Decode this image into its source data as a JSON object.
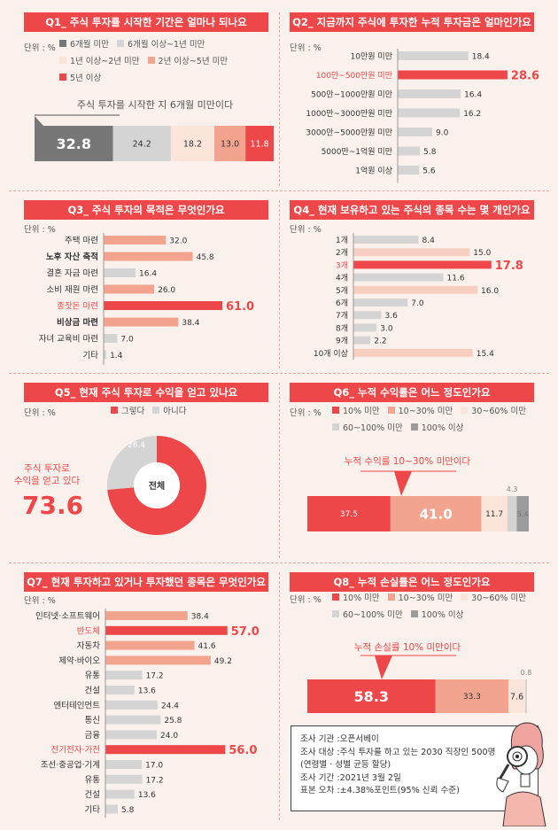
{
  "colors": {
    "red": "#ee4749",
    "salmon": "#f2a48f",
    "peach": "#f7cfc0",
    "pale": "#fbe4da",
    "lightgray": "#d4d4d4",
    "midgray": "#9b9b9b",
    "darkgray": "#777777",
    "accent_text": "#ee4749"
  },
  "units": {
    "q1": "단위 : %",
    "q2": "단위 : %",
    "q3": "단위 : %",
    "q4": "단위 : %",
    "q5": "단위 : %",
    "q6": "단위 : %",
    "q7": "단위 : %",
    "q8": "단위 : %"
  },
  "q1": {
    "title": "Q1_ 주식 투자를 시작한 기간은 얼마나 되나요",
    "callout": "주식 투자를 시작한 지 6개월 미만이다",
    "chart_data": {
      "type": "bar",
      "stacked": true,
      "categories": [
        "6개월 미만",
        "6개월 이상~1년 미만",
        "1년 이상~2년 미만",
        "2년 이상~5년 미만",
        "5년 이상"
      ],
      "values": [
        32.8,
        24.2,
        18.2,
        13.0,
        11.8
      ],
      "labels": [
        "32.8",
        "24.2",
        "18.2",
        "13.0",
        "11.8"
      ],
      "colors": [
        "#777777",
        "#d4d4d4",
        "#fbe4da",
        "#f2a48f",
        "#ee4749"
      ],
      "label_colors": [
        "#ffffff",
        "#333333",
        "#333333",
        "#333333",
        "#ffffff"
      ]
    }
  },
  "q2": {
    "title": "Q2_ 지금까지 주식에 투자한 누적 투자금은 얼마인가요",
    "chart_data": {
      "type": "bar",
      "orientation": "horizontal",
      "categories": [
        "10만원 미만",
        "100만~500만원 미만",
        "500만~1000만원 미만",
        "1000만~3000만원 미만",
        "3000만~5000만원 미만",
        "5000만~1억원 미만",
        "1억원 이상"
      ],
      "values": [
        18.4,
        28.6,
        16.4,
        16.2,
        9.0,
        5.8,
        5.6
      ],
      "labels": [
        "18.4",
        "28.6",
        "16.4",
        "16.2",
        "9.0",
        "5.8",
        "5.6"
      ],
      "highlight": [
        1
      ],
      "xlim": [
        0,
        30
      ]
    }
  },
  "q3": {
    "title": "Q3_ 주식 투자의 목적은 무엇인가요",
    "chart_data": {
      "type": "bar",
      "orientation": "horizontal",
      "categories": [
        "주택 마련",
        "노후 자산 축적",
        "결혼 자금 마련",
        "소비 재원 마련",
        "종잣돈 마련",
        "비상금 마련",
        "자녀 교육비 마련",
        "기타"
      ],
      "values": [
        32.0,
        45.8,
        16.4,
        26.0,
        61.0,
        38.4,
        7.0,
        1.4
      ],
      "labels": [
        "32.0",
        "45.8",
        "16.4",
        "26.0",
        "61.0",
        "38.4",
        "7.0",
        "1.4"
      ],
      "highlight": [
        4
      ],
      "bold": [
        1,
        5
      ],
      "xlim": [
        0,
        66
      ]
    }
  },
  "q4": {
    "title": "Q4_ 현재 보유하고 있는 주식의 종목 수는 몇 개인가요",
    "chart_data": {
      "type": "bar",
      "orientation": "horizontal",
      "categories": [
        "1개",
        "2개",
        "3개",
        "4개",
        "5개",
        "6개",
        "7개",
        "8개",
        "9개",
        "10개 이상"
      ],
      "values": [
        8.4,
        15.0,
        17.8,
        11.6,
        16.0,
        7.0,
        3.6,
        3.0,
        2.2,
        15.4
      ],
      "labels": [
        "8.4",
        "15.0",
        "17.8",
        "11.6",
        "16.0",
        "7.0",
        "3.6",
        "3.0",
        "2.2",
        "15.4"
      ],
      "highlight": [
        2
      ],
      "xlim": [
        0,
        20
      ]
    }
  },
  "q5": {
    "title": "Q5_ 현재 주식 투자로 수익을 얻고 있나요",
    "center_label": "전체",
    "callout_line1": "주식 투자로",
    "callout_line2": "수익을 얻고 있다",
    "big_value": "73.6",
    "chart_data": {
      "type": "pie",
      "categories": [
        "그렇다",
        "아니다"
      ],
      "values": [
        73.6,
        26.4
      ],
      "labels": [
        "73.6",
        "26.4"
      ],
      "colors": [
        "#ee4749",
        "#d4d4d4"
      ]
    }
  },
  "q6": {
    "title": "Q6_ 누적 수익률은 어느 정도인가요",
    "callout": "누적 수익률 10~30% 미만이다",
    "chart_data": {
      "type": "bar",
      "stacked": true,
      "categories": [
        "10% 미만",
        "10~30% 미만",
        "30~60% 미만",
        "60~100% 미만",
        "100% 이상"
      ],
      "values": [
        37.5,
        41.0,
        11.7,
        4.3,
        5.4
      ],
      "labels": [
        "37.5",
        "41.0",
        "11.7",
        "4.3",
        "5.4"
      ],
      "colors": [
        "#ee4749",
        "#f2a48f",
        "#fbe4da",
        "#d4d4d4",
        "#9b9b9b"
      ],
      "label_colors": [
        "#ffffff",
        "#ffffff",
        "#333333",
        "#ffffff",
        "#777777"
      ]
    }
  },
  "q7": {
    "title": "Q7_ 현재 투자하고 있거나 투자했던 종목은 무엇인가요",
    "chart_data": {
      "type": "bar",
      "orientation": "horizontal",
      "categories": [
        "인터넷·소프트웨어",
        "반도체",
        "자동차",
        "제약·바이오",
        "유통",
        "건설",
        "엔터테인먼트",
        "통신",
        "금융",
        "전기전자·가전",
        "조선·중공업·기계",
        "유통",
        "건설",
        "기타"
      ],
      "values": [
        38.4,
        57.0,
        41.6,
        49.2,
        17.2,
        13.6,
        24.4,
        25.8,
        24.0,
        56.0,
        17.0,
        17.2,
        13.6,
        5.8
      ],
      "labels": [
        "38.4",
        "57.0",
        "41.6",
        "49.2",
        "17.2",
        "13.6",
        "24.4",
        "25.8",
        "24.0",
        "56.0",
        "17.0",
        "17.2",
        "13.6",
        "5.8"
      ],
      "highlight": [
        1,
        9
      ],
      "salmon": [
        0,
        2,
        3
      ],
      "xlim": [
        0,
        60
      ]
    }
  },
  "q8": {
    "title": "Q8_ 누적 손실률은 어느 정도인가요",
    "callout": "누적 손실률 10% 미만이다",
    "chart_data": {
      "type": "bar",
      "stacked": true,
      "categories": [
        "10% 미만",
        "10~30% 미만",
        "30~60% 미만",
        "60~100% 미만",
        "100% 이상"
      ],
      "values": [
        58.3,
        33.3,
        7.6,
        0.8,
        0.0
      ],
      "labels": [
        "58.3",
        "33.3",
        "7.6",
        "0.8",
        ""
      ],
      "colors": [
        "#ee4749",
        "#f2a48f",
        "#fbe4da",
        "#d4d4d4",
        "#9b9b9b"
      ],
      "label_colors": [
        "#ffffff",
        "#333333",
        "#333333",
        "#777777",
        "#777777"
      ]
    }
  },
  "survey": {
    "org_label": "조사 기관 : ",
    "org": "오픈서베이",
    "target_label": "조사 대상 : ",
    "target": "주식 투자를 하고 있는 2030 직장인 500명",
    "target2": "(연령별 · 성별 균등 할당)",
    "period_label": "조사 기간 : ",
    "period": "2021년 3월 2일",
    "error_label": "표본 오차 : ",
    "error": "±4.38%포인트(95% 신뢰 수준)"
  }
}
